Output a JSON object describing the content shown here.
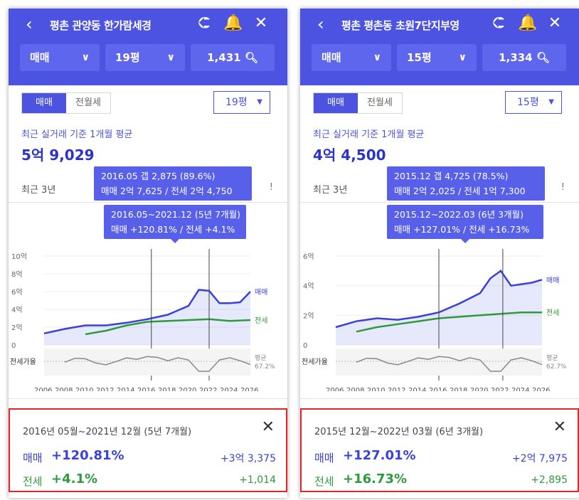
{
  "colors": {
    "header": "#4b53e0",
    "sale": "#3a41d6",
    "jeonse": "#2f9a3c",
    "ratio": "#8a8a8a",
    "highlight": "#e0262b"
  },
  "panels": [
    {
      "header": {
        "back_icon": "chevron-left-icon",
        "title": "평촌 관양동 한가람세경",
        "share_icon": "share-icon",
        "bell_icon": "bell-icon",
        "close_icon": "close-icon"
      },
      "filters": {
        "trade": "매매",
        "size": "19평",
        "count": "1,431"
      },
      "segment": [
        "매매",
        "전월세"
      ],
      "pyeong": "19평",
      "avg_label": "최근 실거래 기준 1개월 평균",
      "avg_value": "5억 9,029",
      "range_label": "최근 3년",
      "tooltip1": {
        "line1": "2016.05  갭 2,875 (89.6%)",
        "line2": "매매 2억 7,625 / 전세 2억 4,750"
      },
      "tooltip2": {
        "line1": "2016.05~2021.12 (5년 7개월)",
        "line2": "매매 +120.81%  /  전세 +4.1%"
      },
      "chart_data": {
        "type": "line",
        "y_ticks": [
          "10억",
          "8억",
          "6억",
          "4억",
          "2억",
          "0"
        ],
        "x_ticks": [
          "2006",
          "2008",
          "2010",
          "2012",
          "2014",
          "2016",
          "2018",
          "2020",
          "2022",
          "2024",
          "2026"
        ],
        "series": [
          {
            "name": "매매",
            "color": "#3a41d6"
          },
          {
            "name": "전세",
            "color": "#2f9a3c"
          },
          {
            "name": "전세가율",
            "color": "#8a8a8a"
          }
        ],
        "ratio_label": "전세가율",
        "ratio_avg": "평균",
        "ratio_avg_value": "67.2%",
        "sale": [
          [
            2006,
            1.3
          ],
          [
            2008,
            1.8
          ],
          [
            2010,
            2.2
          ],
          [
            2012,
            2.2
          ],
          [
            2014,
            2.5
          ],
          [
            2016,
            2.9
          ],
          [
            2018,
            3.4
          ],
          [
            2020,
            4.4
          ],
          [
            2021,
            6.2
          ],
          [
            2022,
            6.1
          ],
          [
            2023,
            4.7
          ],
          [
            2024,
            4.7
          ],
          [
            2025,
            4.8
          ],
          [
            2026,
            6.0
          ]
        ],
        "jeonse": [
          [
            2010,
            1.2
          ],
          [
            2012,
            1.6
          ],
          [
            2014,
            2.2
          ],
          [
            2016,
            2.6
          ],
          [
            2018,
            2.7
          ],
          [
            2020,
            2.8
          ],
          [
            2022,
            2.9
          ],
          [
            2024,
            2.7
          ],
          [
            2026,
            2.8
          ]
        ],
        "ymax": 10
      },
      "result": {
        "period": "2016년 05월~2021년 12월 (5년 7개월)",
        "sale_label": "매매",
        "sale_pct": "+120.81%",
        "sale_amt": "+3억 3,375",
        "jeonse_label": "전세",
        "jeonse_pct": "+4.1%",
        "jeonse_amt": "+1,014",
        "close_icon": "close-icon"
      }
    },
    {
      "header": {
        "back_icon": "chevron-left-icon",
        "title": "평촌 평촌동 초원7단지부영",
        "share_icon": "share-icon",
        "bell_icon": "bell-icon",
        "close_icon": "close-icon"
      },
      "filters": {
        "trade": "매매",
        "size": "15평",
        "count": "1,334"
      },
      "segment": [
        "매매",
        "전월세"
      ],
      "pyeong": "15평",
      "avg_label": "최근 실거래 기준 1개월 평균",
      "avg_value": "4억 4,500",
      "range_label": "최근 3년",
      "tooltip1": {
        "line1": "2015.12  갭 4,725 (78.5%)",
        "line2": "매매 2억 2,025 / 전세 1억 7,300"
      },
      "tooltip2": {
        "line1": "2015.12~2022.03 (6년 3개월)",
        "line2": "매매 +127.01%  /  전세 +16.73%"
      },
      "chart_data": {
        "type": "line",
        "y_ticks": [
          "6억",
          "4억",
          "2억",
          "0"
        ],
        "x_ticks": [
          "2006",
          "2008",
          "2010",
          "2012",
          "2014",
          "2016",
          "2018",
          "2020",
          "2022",
          "2024",
          "2026"
        ],
        "series": [
          {
            "name": "매매",
            "color": "#3a41d6"
          },
          {
            "name": "전세",
            "color": "#2f9a3c"
          },
          {
            "name": "전세가율",
            "color": "#8a8a8a"
          }
        ],
        "ratio_label": "전세가율",
        "ratio_avg": "평균",
        "ratio_avg_value": "62.7%",
        "sale": [
          [
            2006,
            1.2
          ],
          [
            2008,
            1.6
          ],
          [
            2010,
            1.8
          ],
          [
            2012,
            1.7
          ],
          [
            2014,
            1.9
          ],
          [
            2016,
            2.2
          ],
          [
            2018,
            2.8
          ],
          [
            2020,
            3.5
          ],
          [
            2021,
            4.5
          ],
          [
            2022,
            5.0
          ],
          [
            2023,
            4.0
          ],
          [
            2024,
            4.1
          ],
          [
            2025,
            4.2
          ],
          [
            2026,
            4.4
          ]
        ],
        "jeonse": [
          [
            2008,
            0.9
          ],
          [
            2010,
            1.2
          ],
          [
            2012,
            1.4
          ],
          [
            2014,
            1.6
          ],
          [
            2016,
            1.8
          ],
          [
            2018,
            1.9
          ],
          [
            2020,
            2.0
          ],
          [
            2022,
            2.1
          ],
          [
            2024,
            2.2
          ],
          [
            2026,
            2.2
          ]
        ],
        "ymax": 6
      },
      "result": {
        "period": "2015년 12월~2022년 03월 (6년 3개월)",
        "sale_label": "매매",
        "sale_pct": "+127.01%",
        "sale_amt": "+2억 7,975",
        "jeonse_label": "전세",
        "jeonse_pct": "+16.73%",
        "jeonse_amt": "+2,895",
        "close_icon": "close-icon"
      }
    }
  ]
}
